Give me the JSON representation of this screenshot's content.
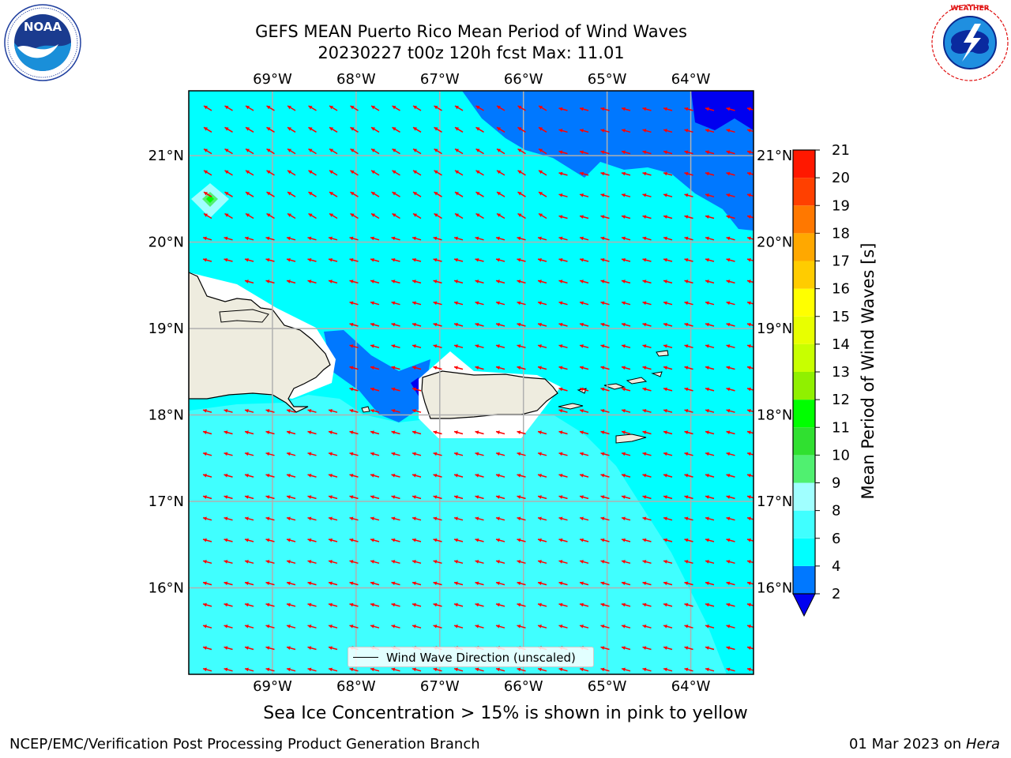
{
  "title": {
    "line1": "GEFS MEAN Puerto Rico Mean Period of Wind Waves",
    "line2": "20230227 t00z 120h fcst   Max: 11.01"
  },
  "logos": {
    "left": {
      "icon": "noaa-logo",
      "text": "NOAA",
      "ring_text": "NATIONAL OCEANIC AND ATMOSPHERIC ADMINISTRATION · U.S. DEPARTMENT OF COMMERCE"
    },
    "right": {
      "icon": "nws-logo",
      "ring_text": "NATIONAL WEATHER SERVICE"
    }
  },
  "map": {
    "lon_labels": [
      "69°W",
      "68°W",
      "67°W",
      "66°W",
      "65°W",
      "64°W"
    ],
    "lat_labels": [
      "21°N",
      "20°N",
      "19°N",
      "18°N",
      "17°N",
      "16°N"
    ],
    "lon_values": [
      -69,
      -68,
      -67,
      -66,
      -65,
      -64
    ],
    "lat_values": [
      21,
      20,
      19,
      18,
      17,
      16
    ],
    "lon_range": [
      -70.0,
      -63.25
    ],
    "lat_range": [
      15.0,
      21.75
    ],
    "land_color": "#eeecdf",
    "arrow_color": "#ff0000",
    "wave_direction": "east-to-west, slightly from the south-east"
  },
  "colorbar": {
    "title": "Mean Period of Wind Waves [s]",
    "tick_labels": [
      "21",
      "20",
      "19",
      "18",
      "17",
      "16",
      "15",
      "14",
      "13",
      "12",
      "11",
      "10",
      "9",
      "8",
      "6",
      "4",
      "2"
    ],
    "levels": [
      2,
      4,
      6,
      8,
      9,
      10,
      11,
      12,
      13,
      14,
      15,
      16,
      17,
      18,
      19,
      20,
      21
    ],
    "colors": [
      "#0000f0",
      "#0078ff",
      "#00ffff",
      "#40ffff",
      "#a0ffff",
      "#50f070",
      "#30e030",
      "#00ff00",
      "#90f000",
      "#c8ff00",
      "#e8ff00",
      "#ffff00",
      "#ffcc00",
      "#ffa800",
      "#ff7800",
      "#ff4000",
      "#ff1800",
      "#ff0000"
    ],
    "under_color": "#0000f0"
  },
  "legend": {
    "label": "Wind Wave Direction (unscaled)"
  },
  "notes": {
    "sea_ice": "Sea Ice Concentration > 15% is shown in pink to yellow"
  },
  "footer": {
    "left": "NCEP/EMC/Verification Post Processing Product Generation Branch",
    "right_date": "01 Mar 2023 on",
    "right_machine": "Hera"
  }
}
